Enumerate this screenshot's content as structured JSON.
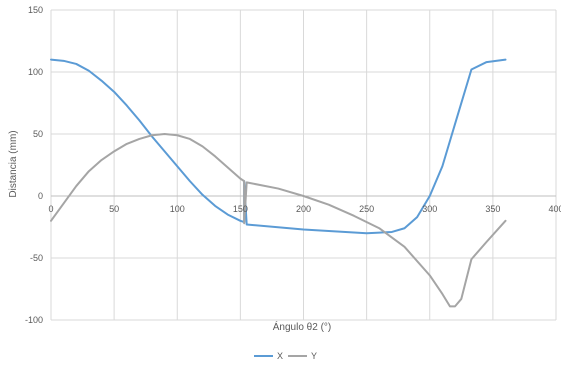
{
  "chart_data": {
    "type": "line",
    "title": "",
    "xlabel": "Ángulo θ2 (°)",
    "ylabel": "Distancia (mm)",
    "xlim": [
      0,
      400
    ],
    "ylim": [
      -100,
      150
    ],
    "x_ticks": [
      0,
      50,
      100,
      150,
      200,
      250,
      300,
      350,
      400
    ],
    "y_ticks": [
      -100,
      -50,
      0,
      50,
      100,
      150
    ],
    "grid": true,
    "legend_position": "bottom",
    "series": [
      {
        "name": "X",
        "color": "#5b9bd5",
        "points": [
          [
            0,
            110
          ],
          [
            10,
            109
          ],
          [
            20,
            106.5
          ],
          [
            30,
            101
          ],
          [
            40,
            93
          ],
          [
            50,
            84
          ],
          [
            60,
            73
          ],
          [
            70,
            61
          ],
          [
            80,
            48
          ],
          [
            90,
            36
          ],
          [
            100,
            24
          ],
          [
            110,
            12
          ],
          [
            120,
            1
          ],
          [
            130,
            -8
          ],
          [
            140,
            -15
          ],
          [
            150,
            -20
          ],
          [
            153,
            -21
          ],
          [
            153,
            12
          ],
          [
            155,
            -23
          ],
          [
            200,
            -27
          ],
          [
            250,
            -30
          ],
          [
            270,
            -29
          ],
          [
            280,
            -26
          ],
          [
            290,
            -17
          ],
          [
            300,
            0
          ],
          [
            310,
            24
          ],
          [
            320,
            58
          ],
          [
            333,
            102
          ],
          [
            345,
            108
          ],
          [
            360,
            110
          ]
        ]
      },
      {
        "name": "Y",
        "color": "#a5a5a5",
        "points": [
          [
            0,
            -20
          ],
          [
            10,
            -6
          ],
          [
            20,
            8
          ],
          [
            30,
            20
          ],
          [
            40,
            29
          ],
          [
            50,
            36
          ],
          [
            60,
            42
          ],
          [
            70,
            46
          ],
          [
            80,
            49
          ],
          [
            90,
            50
          ],
          [
            100,
            49
          ],
          [
            110,
            46
          ],
          [
            120,
            40
          ],
          [
            130,
            32
          ],
          [
            140,
            23
          ],
          [
            150,
            14
          ],
          [
            153,
            12
          ],
          [
            153,
            -22
          ],
          [
            155,
            11
          ],
          [
            180,
            6
          ],
          [
            200,
            0
          ],
          [
            220,
            -7
          ],
          [
            240,
            -16
          ],
          [
            260,
            -26
          ],
          [
            280,
            -41
          ],
          [
            300,
            -64
          ],
          [
            310,
            -79
          ],
          [
            316,
            -89
          ],
          [
            320,
            -89
          ],
          [
            325,
            -83
          ],
          [
            333,
            -51
          ],
          [
            345,
            -37
          ],
          [
            360,
            -20
          ]
        ]
      }
    ]
  }
}
